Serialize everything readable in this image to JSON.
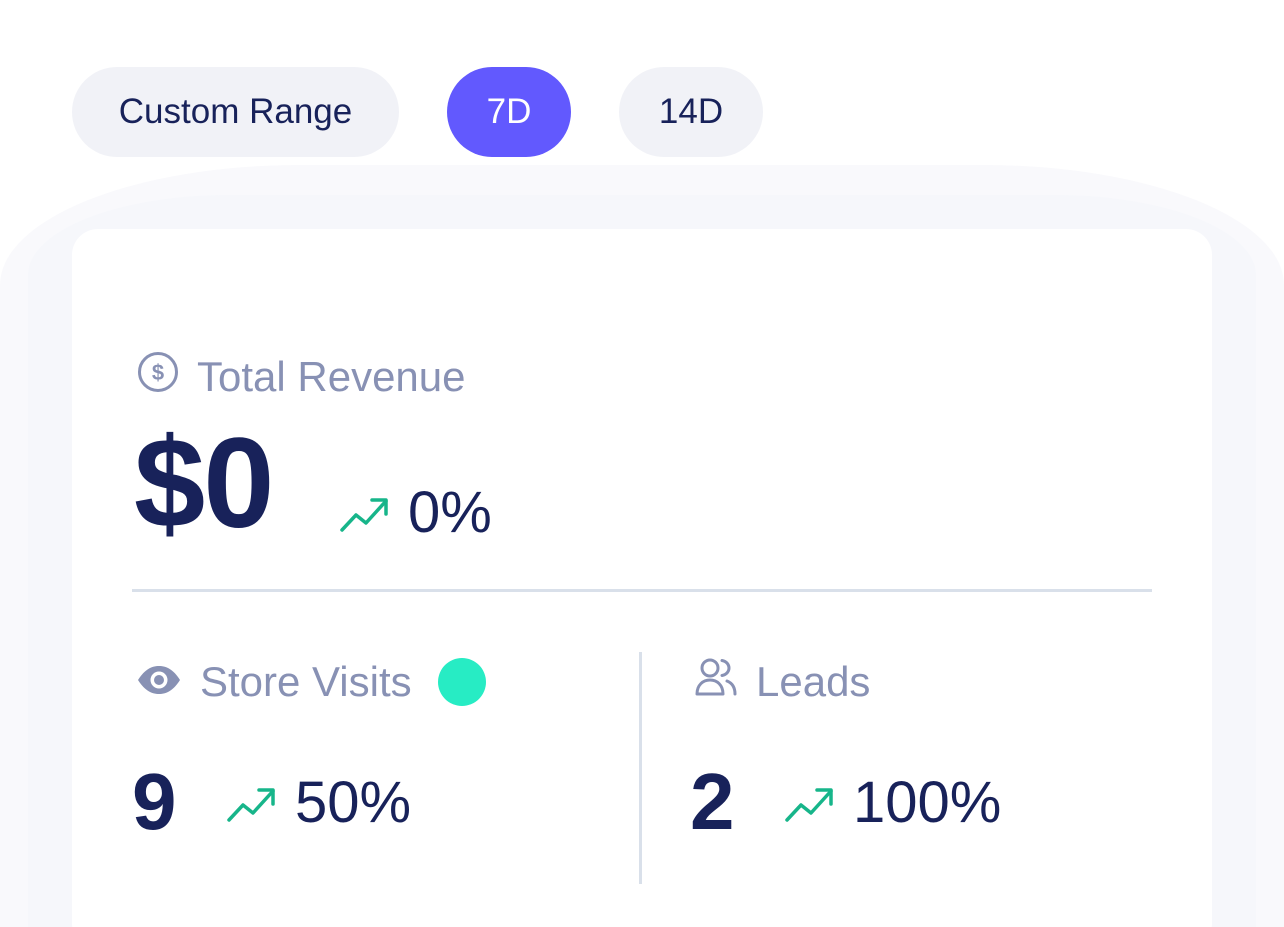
{
  "range_options": {
    "custom": "Custom Range",
    "seven_day": "7D",
    "fourteen_day": "14D",
    "selected": "7D"
  },
  "revenue": {
    "label": "Total Revenue",
    "value": "$0",
    "change": "0%",
    "icon": "dollar-circle-icon"
  },
  "store_visits": {
    "label": "Store Visits",
    "value": "9",
    "change": "50%",
    "icon": "eye-icon",
    "live_indicator_color": "#27ecc4"
  },
  "leads": {
    "label": "Leads",
    "value": "2",
    "change": "100%",
    "icon": "users-icon"
  },
  "colors": {
    "accent": "#6259fe",
    "trend_up": "#17b58a",
    "text_dark": "#18225a",
    "text_muted": "#8891b4"
  }
}
